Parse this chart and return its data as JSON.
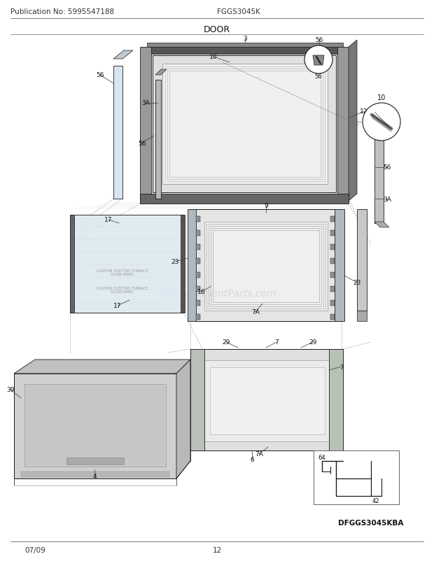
{
  "title": "DOOR",
  "pub_no": "Publication No: 5995547188",
  "model": "FGGS3045K",
  "diagram_model": "DFGGS3045KBA",
  "date": "07/09",
  "page": "12",
  "watermark": "eReplacementParts.com",
  "bg_color": "#ffffff",
  "line_color": "#1a1a1a",
  "header_fontsize": 7.5,
  "title_fontsize": 9,
  "label_fontsize": 6.5,
  "gray_dark": "#888888",
  "gray_mid": "#aaaaaa",
  "gray_light": "#cccccc",
  "gray_fill": "#e8e8e8",
  "gray_panel": "#d4d4d4",
  "gray_strip": "#b0b0b0"
}
